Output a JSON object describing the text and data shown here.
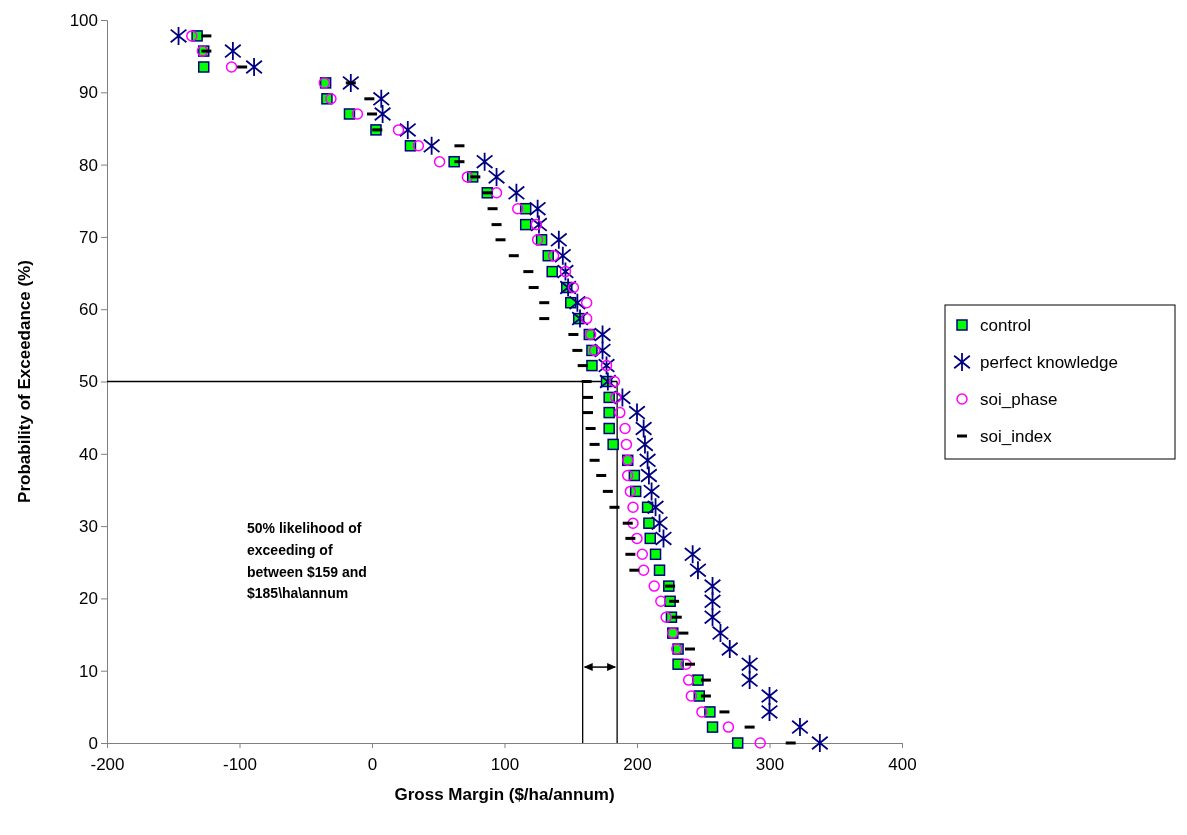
{
  "chart_data": {
    "type": "scatter",
    "xlabel": "Gross Margin ($/ha/annum)",
    "ylabel": "Probability of Exceedance (%)",
    "x": [
      -132,
      -127,
      -127,
      -35,
      -34,
      -17,
      3,
      29,
      62,
      76,
      87,
      116,
      116,
      128,
      133,
      136,
      147,
      150,
      156,
      164,
      166,
      166,
      177,
      179,
      179,
      179,
      182,
      193,
      198,
      199,
      208,
      209,
      210,
      214,
      217,
      224,
      225,
      226,
      227,
      231,
      231,
      246,
      247,
      255,
      257,
      276
    ],
    "xlim": [
      -200,
      400
    ],
    "xticks": [
      -200,
      -100,
      0,
      100,
      200,
      300,
      400
    ],
    "ylim": [
      0,
      100
    ],
    "yticks": [
      0,
      10,
      20,
      30,
      40,
      50,
      60,
      70,
      80,
      90,
      100
    ],
    "grid": false,
    "legend": "right",
    "series": [
      {
        "name": "control",
        "color": "#00ff00",
        "marker": "square",
        "values": [
          97.8,
          95.7,
          93.5,
          91.3,
          89.1,
          87.0,
          84.8,
          82.6,
          80.4,
          78.3,
          76.1,
          73.9,
          71.7,
          69.6,
          67.4,
          65.2,
          63.0,
          60.9,
          58.7,
          56.5,
          54.3,
          52.2,
          50.0,
          47.8,
          45.7,
          43.5,
          41.3,
          39.1,
          37.0,
          34.8,
          32.6,
          30.4,
          28.3,
          26.1,
          23.9,
          21.7,
          19.6,
          17.4,
          15.2,
          13.0,
          10.9,
          8.7,
          6.5,
          4.3,
          2.2,
          0
        ]
      },
      {
        "name": "perfect knowledge",
        "color": "#000080",
        "marker": "cross",
        "x": [
          -146,
          -105,
          -89,
          -16,
          7,
          8,
          27,
          45,
          85,
          94,
          109,
          125,
          126,
          141,
          144,
          146,
          148,
          155,
          157,
          174,
          174,
          177,
          178,
          189,
          200,
          205,
          206,
          208,
          209,
          211,
          214,
          217,
          220,
          242,
          246,
          257,
          257,
          257,
          263,
          270,
          285,
          285,
          300,
          300,
          323,
          338
        ],
        "values": [
          97.8,
          95.7,
          93.5,
          91.3,
          89.1,
          87.0,
          84.8,
          82.6,
          80.4,
          78.3,
          76.1,
          73.9,
          71.7,
          69.6,
          67.4,
          65.2,
          63.0,
          60.9,
          58.7,
          56.5,
          54.3,
          52.2,
          50.0,
          47.8,
          45.7,
          43.5,
          41.3,
          39.1,
          37.0,
          34.8,
          32.6,
          30.4,
          28.3,
          26.1,
          23.9,
          21.7,
          19.6,
          17.4,
          15.2,
          13.0,
          10.9,
          8.7,
          6.5,
          4.3,
          2.2,
          0
        ]
      },
      {
        "name": "soi_phase",
        "color": "#ff00ff",
        "marker": "circle",
        "x": [
          -136,
          -128,
          -106,
          -36,
          -31,
          -11,
          20,
          35,
          51,
          72,
          94,
          110,
          124,
          125,
          137,
          146,
          152,
          162,
          162,
          165,
          168,
          177,
          183,
          184,
          187,
          191,
          192,
          193,
          193,
          195,
          197,
          197,
          200,
          204,
          205,
          213,
          218,
          222,
          227,
          230,
          237,
          239,
          241,
          249,
          269,
          293
        ],
        "values": [
          97.8,
          95.7,
          93.5,
          91.3,
          89.1,
          87.0,
          84.8,
          82.6,
          80.4,
          78.3,
          76.1,
          73.9,
          71.7,
          69.6,
          67.4,
          65.2,
          63.0,
          60.9,
          58.7,
          56.5,
          54.3,
          52.2,
          50.0,
          47.8,
          45.7,
          43.5,
          41.3,
          39.1,
          37.0,
          34.8,
          32.6,
          30.4,
          28.3,
          26.1,
          23.9,
          21.7,
          19.6,
          17.4,
          15.2,
          13.0,
          10.9,
          8.7,
          6.5,
          4.3,
          2.2,
          0
        ]
      },
      {
        "name": "soi_index",
        "color": "#000000",
        "x": [
          -125,
          -125,
          -98,
          -16,
          -2,
          0,
          4,
          66,
          66,
          78,
          87,
          91,
          94,
          97,
          107,
          118,
          122,
          130,
          130,
          152,
          155,
          159,
          162,
          163,
          163,
          165,
          168,
          168,
          173,
          178,
          183,
          193,
          195,
          195,
          198,
          225,
          228,
          230,
          235,
          240,
          240,
          252,
          252,
          266,
          285,
          316
        ],
        "values": [
          97.8,
          95.7,
          93.5,
          91.3,
          89.1,
          87.0,
          84.8,
          82.6,
          80.4,
          78.3,
          76.1,
          73.9,
          71.7,
          69.6,
          67.4,
          65.2,
          63.0,
          60.9,
          58.7,
          56.5,
          54.3,
          52.2,
          50.0,
          47.8,
          45.7,
          43.5,
          41.3,
          39.1,
          37.0,
          34.8,
          32.6,
          30.4,
          28.3,
          26.1,
          23.9,
          21.7,
          19.6,
          17.4,
          15.2,
          13.0,
          10.9,
          8.7,
          6.5,
          4.3,
          2.2,
          0
        ]
      }
    ],
    "ref_lines": [
      {
        "axis": "y",
        "value": 50,
        "color": "#000000"
      },
      {
        "axis": "x",
        "value": 159,
        "color": "#000000"
      },
      {
        "axis": "x",
        "value": 185,
        "color": "#000000"
      }
    ],
    "annotations": [
      "50% likelihood of exceeding of between $159 and $185\\ha\\annum"
    ]
  }
}
